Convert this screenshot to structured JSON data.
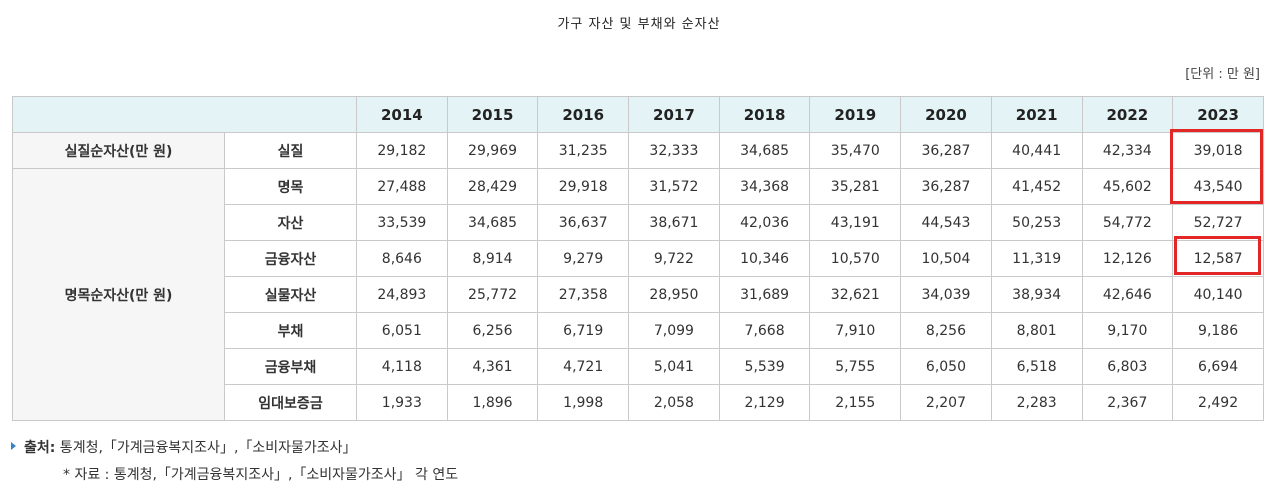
{
  "title": "가구 자산 및 부채와 순자산",
  "unit": "[단위 : 만 원]",
  "table": {
    "years": [
      "2014",
      "2015",
      "2016",
      "2017",
      "2018",
      "2019",
      "2020",
      "2021",
      "2022",
      "2023"
    ],
    "group_real": "실질순자산(만 원)",
    "group_nominal": "명목순자산(만 원)",
    "rows": [
      {
        "label": "실질",
        "values": [
          "29,182",
          "29,969",
          "31,235",
          "32,333",
          "34,685",
          "35,470",
          "36,287",
          "40,441",
          "42,334",
          "39,018"
        ]
      },
      {
        "label": "명목",
        "values": [
          "27,488",
          "28,429",
          "29,918",
          "31,572",
          "34,368",
          "35,281",
          "36,287",
          "41,452",
          "45,602",
          "43,540"
        ]
      },
      {
        "label": "자산",
        "values": [
          "33,539",
          "34,685",
          "36,637",
          "38,671",
          "42,036",
          "43,191",
          "44,543",
          "50,253",
          "54,772",
          "52,727"
        ]
      },
      {
        "label": "금융자산",
        "values": [
          "8,646",
          "8,914",
          "9,279",
          "9,722",
          "10,346",
          "10,570",
          "10,504",
          "11,319",
          "12,126",
          "12,587"
        ]
      },
      {
        "label": "실물자산",
        "values": [
          "24,893",
          "25,772",
          "27,358",
          "28,950",
          "31,689",
          "32,621",
          "34,039",
          "38,934",
          "42,646",
          "40,140"
        ]
      },
      {
        "label": "부채",
        "values": [
          "6,051",
          "6,256",
          "6,719",
          "7,099",
          "7,668",
          "7,910",
          "8,256",
          "8,801",
          "9,170",
          "9,186"
        ]
      },
      {
        "label": "금융부채",
        "values": [
          "4,118",
          "4,361",
          "4,721",
          "5,041",
          "5,539",
          "5,755",
          "6,050",
          "6,518",
          "6,803",
          "6,694"
        ]
      },
      {
        "label": "임대보증금",
        "values": [
          "1,933",
          "1,896",
          "1,998",
          "2,058",
          "2,129",
          "2,155",
          "2,207",
          "2,283",
          "2,367",
          "2,492"
        ]
      }
    ]
  },
  "source": {
    "label": "출처:",
    "text": " 통계청,「가계금융복지조사」,「소비자물가조사」",
    "note": "* 자료 : 통계청,「가계금융복지조사」,「소비자물가조사」 각 연도"
  },
  "highlight_color": "#e32626",
  "header_bg": "#e4f3f5"
}
